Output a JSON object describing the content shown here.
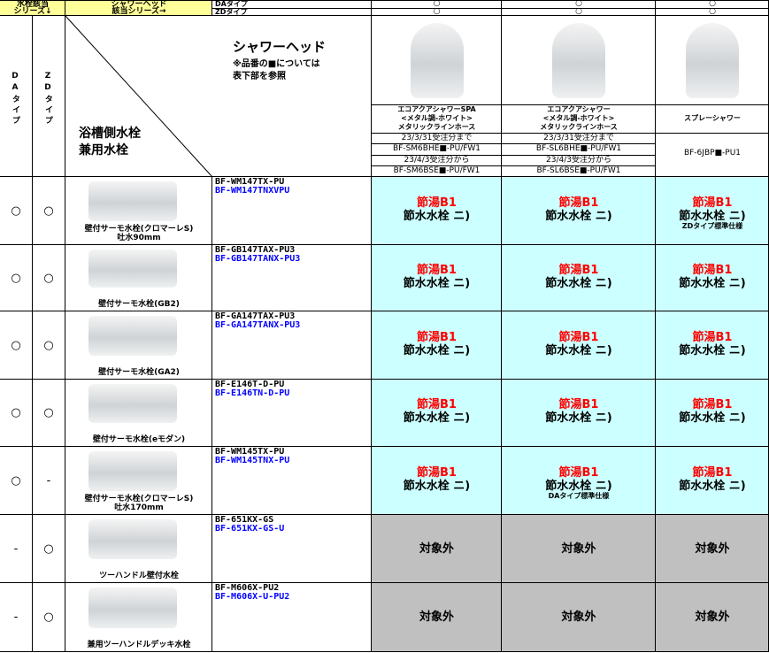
{
  "header": {
    "left_top": [
      "水栓該当",
      "シリーズ↓"
    ],
    "shower_label": [
      "シャワーヘッド",
      "該当シリーズ→"
    ],
    "types": [
      "DAタイプ",
      "ZDタイプ"
    ],
    "marks": [
      [
        "○",
        "○"
      ],
      [
        "○",
        "○"
      ],
      [
        "○",
        "○"
      ]
    ],
    "col_da": "DAタイプ",
    "col_zd": "ZDタイプ",
    "title": "シャワーヘッド",
    "note": [
      "※品番の■については",
      "表下部を参照"
    ],
    "faucet_label": [
      "浴槽側水栓",
      "兼用水栓"
    ]
  },
  "showers": [
    {
      "name": [
        "エコアクアシャワーSPA",
        "<メタル調-ホワイト>",
        "メタリックラインホース"
      ],
      "codes": [
        {
          "period": "23/3/31受注分まで",
          "code": "BF-SM6BHE■-PU/FW1"
        },
        {
          "period": "23/4/3受注分から",
          "code": "BF-SM6BSE■-PU/FW1"
        }
      ]
    },
    {
      "name": [
        "エコアクアシャワー",
        "<メタル調-ホワイト>",
        "メタリックラインホース"
      ],
      "codes": [
        {
          "period": "23/3/31受注分まで",
          "code": "BF-SL6BHE■-PU/FW1"
        },
        {
          "period": "23/4/3受注分から",
          "code": "BF-SL6BSE■-PU/FW1"
        }
      ]
    },
    {
      "name": [
        "スプレーシャワー"
      ],
      "code": "BF-6JBP■-PU1"
    }
  ],
  "rows": [
    {
      "da": "○",
      "zd": "○",
      "name": [
        "壁付サーモ水栓(クロマーレS)",
        "吐水90mm"
      ],
      "code1": "BF-WM147TX-PU",
      "code2": "BF-WM147TNXVPU",
      "cells": [
        {
          "line1": "節湯B1",
          "line2": "節水水栓 ニ)"
        },
        {
          "line1": "節湯B1",
          "line2": "節水水栓 ニ)"
        },
        {
          "line1": "節湯B1",
          "line2": "節水水栓 ニ)",
          "note": "ZDタイプ標準仕様"
        }
      ]
    },
    {
      "da": "○",
      "zd": "○",
      "name": [
        "壁付サーモ水栓(GB2)"
      ],
      "code1": "BF-GB147TAX-PU3",
      "code2": "BF-GB147TANX-PU3",
      "cells": [
        {
          "line1": "節湯B1",
          "line2": "節水水栓 ニ)"
        },
        {
          "line1": "節湯B1",
          "line2": "節水水栓 ニ)"
        },
        {
          "line1": "節湯B1",
          "line2": "節水水栓 ニ)"
        }
      ]
    },
    {
      "da": "○",
      "zd": "○",
      "name": [
        "壁付サーモ水栓(GA2)"
      ],
      "code1": "BF-GA147TAX-PU3",
      "code2": "BF-GA147TANX-PU3",
      "cells": [
        {
          "line1": "節湯B1",
          "line2": "節水水栓 ニ)"
        },
        {
          "line1": "節湯B1",
          "line2": "節水水栓 ニ)"
        },
        {
          "line1": "節湯B1",
          "line2": "節水水栓 ニ)"
        }
      ]
    },
    {
      "da": "○",
      "zd": "○",
      "name": [
        "壁付サーモ水栓(eモダン)"
      ],
      "code1": "BF-E146T-D-PU",
      "code2": "BF-E146TN-D-PU",
      "cells": [
        {
          "line1": "節湯B1",
          "line2": "節水水栓 ニ)"
        },
        {
          "line1": "節湯B1",
          "line2": "節水水栓 ニ)"
        },
        {
          "line1": "節湯B1",
          "line2": "節水水栓 ニ)"
        }
      ]
    },
    {
      "da": "○",
      "zd": "-",
      "name": [
        "壁付サーモ水栓(クロマーレS)",
        "吐水170mm"
      ],
      "code1": "BF-WM145TX-PU",
      "code2": "BF-WM145TNX-PU",
      "cells": [
        {
          "line1": "節湯B1",
          "line2": "節水水栓 ニ)"
        },
        {
          "line1": "節湯B1",
          "line2": "節水水栓 ニ)",
          "note": "DAタイプ標準仕様"
        },
        {
          "line1": "節湯B1",
          "line2": "節水水栓 ニ)"
        }
      ]
    },
    {
      "da": "-",
      "zd": "○",
      "name": [
        "ツーハンドル壁付水栓"
      ],
      "code1": "BF-651KX-GS",
      "code2": "BF-651KX-GS-U",
      "cells": [
        {
          "text": "対象外"
        },
        {
          "text": "対象外"
        },
        {
          "text": "対象外"
        }
      ]
    },
    {
      "da": "-",
      "zd": "○",
      "name": [
        "兼用ツーハンドルデッキ水栓"
      ],
      "code1": "BF-M606X-PU2",
      "code2": "BF-M606X-U-PU2",
      "cells": [
        {
          "text": "対象外"
        },
        {
          "text": "対象外"
        },
        {
          "text": "対象外"
        }
      ]
    }
  ]
}
